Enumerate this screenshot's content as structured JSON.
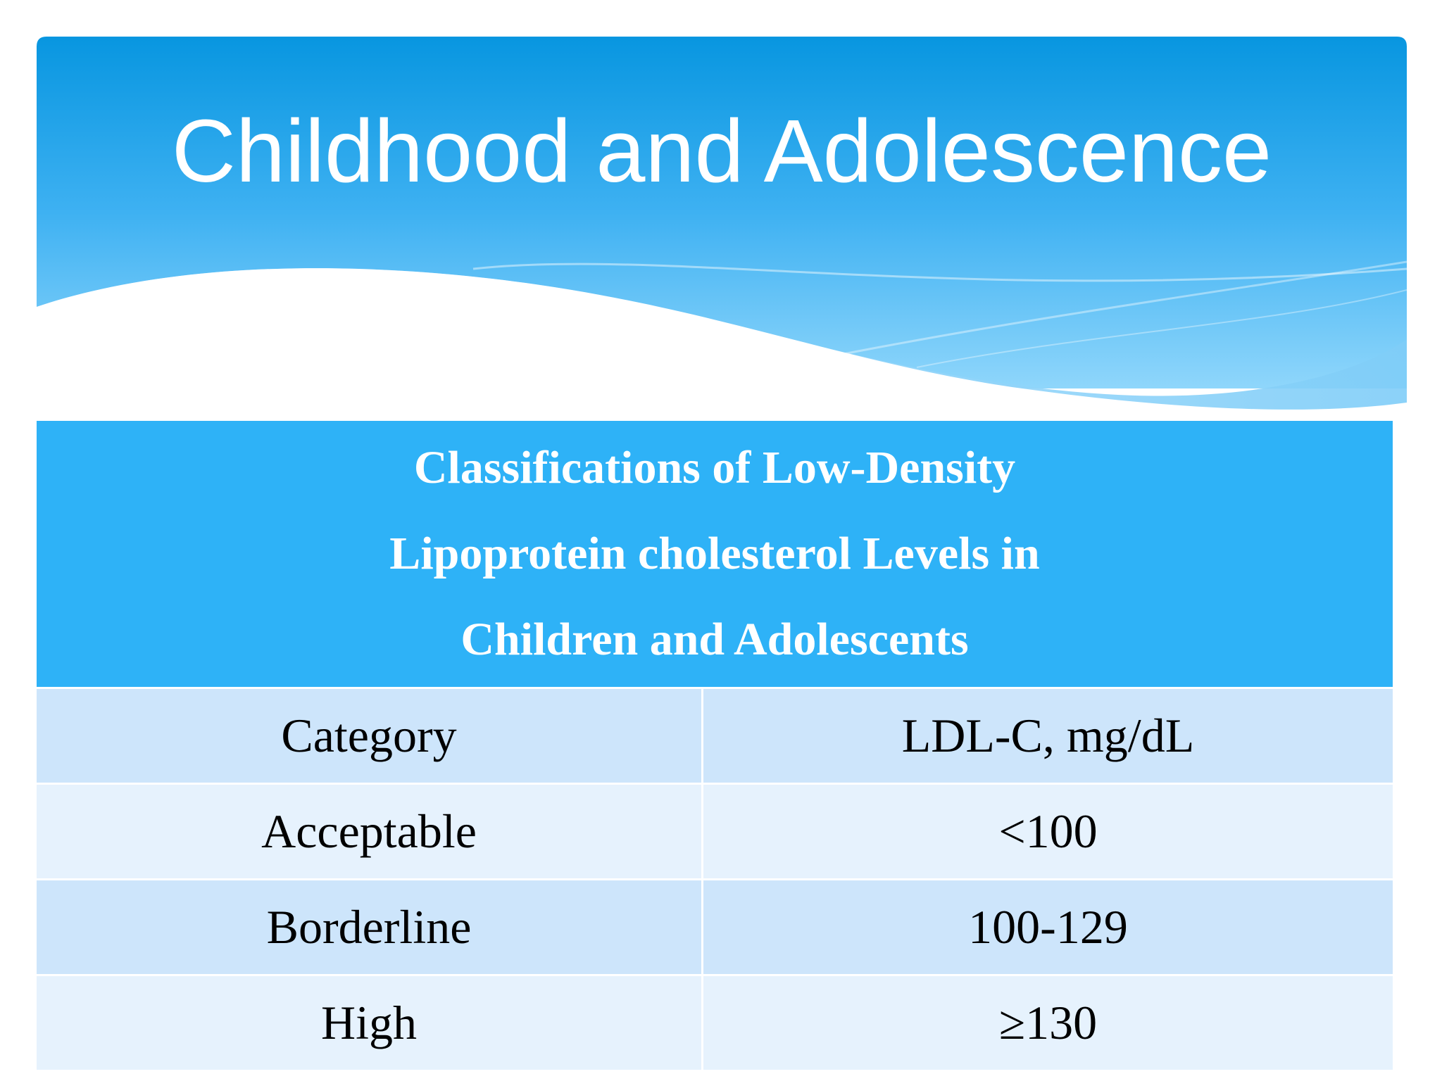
{
  "slide": {
    "title": "Childhood and Adolescence"
  },
  "table": {
    "caption_lines": [
      "Classifications of Low-Density",
      "Lipoprotein cholesterol Levels in",
      "Children and Adolescents"
    ],
    "columns": [
      "Category",
      "LDL-C, mg/dL"
    ],
    "rows": [
      {
        "category": "Acceptable",
        "value": "<100"
      },
      {
        "category": "Borderline",
        "value": "100-129"
      },
      {
        "category": "High",
        "value": "≥130"
      }
    ]
  },
  "colors": {
    "banner_top": "#0896e0",
    "banner_bottom": "#6cc9f9",
    "caption_bg": "#2eb2f7",
    "row_dark": "#cde5fb",
    "row_light": "#e6f2fd"
  }
}
